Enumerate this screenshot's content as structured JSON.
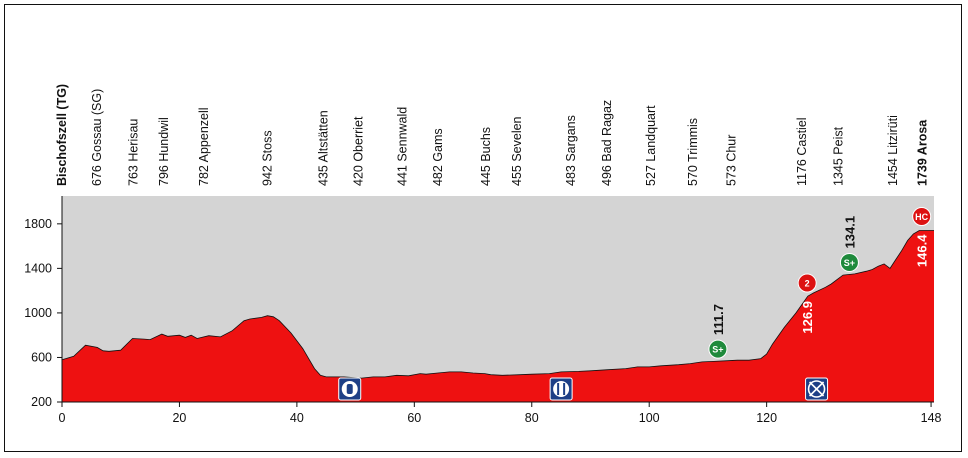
{
  "chart_data": {
    "type": "area",
    "title": "",
    "xlabel": "",
    "ylabel": "",
    "xlim": [
      0,
      148.5
    ],
    "ylim": [
      200,
      2050
    ],
    "x_ticks": [
      0,
      20,
      40,
      60,
      80,
      100,
      120,
      148
    ],
    "y_ticks": [
      200,
      600,
      1000,
      1400,
      1800
    ],
    "grid": false,
    "colors": {
      "fill": "#ee1111",
      "plot_bg": "#d4d4d4",
      "line": "#111111",
      "badge_red": "#dd1111",
      "badge_green": "#1f8a3c",
      "badge_blue": "#1d3f86"
    },
    "profile": [
      [
        0,
        580
      ],
      [
        2,
        610
      ],
      [
        4,
        710
      ],
      [
        6,
        690
      ],
      [
        7,
        660
      ],
      [
        8,
        655
      ],
      [
        10,
        665
      ],
      [
        12,
        770
      ],
      [
        14,
        765
      ],
      [
        15,
        760
      ],
      [
        17,
        810
      ],
      [
        18,
        790
      ],
      [
        20,
        800
      ],
      [
        21,
        780
      ],
      [
        22,
        800
      ],
      [
        23,
        770
      ],
      [
        25,
        795
      ],
      [
        27,
        785
      ],
      [
        29,
        840
      ],
      [
        31,
        930
      ],
      [
        32,
        945
      ],
      [
        34,
        960
      ],
      [
        35,
        975
      ],
      [
        36,
        965
      ],
      [
        37,
        930
      ],
      [
        39,
        820
      ],
      [
        41,
        680
      ],
      [
        43,
        500
      ],
      [
        44,
        440
      ],
      [
        45,
        425
      ],
      [
        48,
        425
      ],
      [
        51,
        415
      ],
      [
        53,
        425
      ],
      [
        55,
        425
      ],
      [
        57,
        440
      ],
      [
        59,
        435
      ],
      [
        61,
        455
      ],
      [
        62,
        450
      ],
      [
        64,
        460
      ],
      [
        66,
        470
      ],
      [
        68,
        470
      ],
      [
        70,
        460
      ],
      [
        72,
        455
      ],
      [
        73,
        445
      ],
      [
        75,
        440
      ],
      [
        78,
        445
      ],
      [
        80,
        450
      ],
      [
        83,
        455
      ],
      [
        85,
        470
      ],
      [
        88,
        475
      ],
      [
        90,
        480
      ],
      [
        93,
        490
      ],
      [
        96,
        500
      ],
      [
        98,
        515
      ],
      [
        100,
        515
      ],
      [
        102,
        525
      ],
      [
        105,
        535
      ],
      [
        107,
        545
      ],
      [
        109,
        560
      ],
      [
        111,
        565
      ],
      [
        113,
        570
      ],
      [
        115,
        575
      ],
      [
        117,
        575
      ],
      [
        119,
        590
      ],
      [
        120,
        630
      ],
      [
        121,
        720
      ],
      [
        123,
        870
      ],
      [
        125,
        1000
      ],
      [
        127,
        1150
      ],
      [
        128,
        1180
      ],
      [
        130,
        1230
      ],
      [
        131,
        1260
      ],
      [
        133,
        1340
      ],
      [
        135,
        1350
      ],
      [
        137,
        1375
      ],
      [
        138,
        1390
      ],
      [
        139,
        1420
      ],
      [
        140,
        1440
      ],
      [
        141,
        1400
      ],
      [
        142,
        1480
      ],
      [
        143,
        1560
      ],
      [
        144,
        1650
      ],
      [
        145,
        1710
      ],
      [
        146,
        1740
      ],
      [
        148.5,
        1740
      ]
    ],
    "locations": [
      {
        "label": "Bischofszell (TG)",
        "km": 0.0,
        "bold": true
      },
      {
        "label": "676 Gossau  (SG)",
        "km": 6.0,
        "bold": false
      },
      {
        "label": "763 Herisau",
        "km": 12.2,
        "bold": false
      },
      {
        "label": "796 Hundwil",
        "km": 17.4,
        "bold": false
      },
      {
        "label": "782 Appenzell",
        "km": 24.2,
        "bold": false
      },
      {
        "label": "942 Stoss",
        "km": 35.0,
        "bold": false
      },
      {
        "label": "435 Altstätten",
        "km": 44.5,
        "bold": false
      },
      {
        "label": "420 Oberriet",
        "km": 50.5,
        "bold": false
      },
      {
        "label": "441 Sennwald",
        "km": 58.0,
        "bold": false
      },
      {
        "label": "482 Gams",
        "km": 64.0,
        "bold": false
      },
      {
        "label": "445 Buchs",
        "km": 72.2,
        "bold": false
      },
      {
        "label": "455 Sevelen",
        "km": 77.5,
        "bold": false
      },
      {
        "label": "483 Sargans",
        "km": 86.7,
        "bold": false
      },
      {
        "label": "496 Bad Ragaz",
        "km": 92.8,
        "bold": false
      },
      {
        "label": "527 Landquart",
        "km": 100.3,
        "bold": false
      },
      {
        "label": "570 Trimmis",
        "km": 107.5,
        "bold": false
      },
      {
        "label": "573 Chur",
        "km": 114.0,
        "bold": false
      },
      {
        "label": "1176 Castiel",
        "km": 126.0,
        "bold": false
      },
      {
        "label": "1345  Peist",
        "km": 132.2,
        "bold": false
      },
      {
        "label": "1454 Litzirüti",
        "km": 141.5,
        "bold": false
      },
      {
        "label": "1739 Arosa",
        "km": 146.5,
        "bold": true
      }
    ],
    "annotations": [
      {
        "text": "111.7",
        "km": 111.7,
        "color": "#111111",
        "badge": "S+",
        "badge_color": "#1f8a3c",
        "inside": false
      },
      {
        "text": "134.1",
        "km": 134.1,
        "color": "#111111",
        "badge": "S+",
        "badge_color": "#1f8a3c",
        "inside": false
      },
      {
        "text": "126.9",
        "km": 126.9,
        "color": "#ffffff",
        "badge": "2",
        "badge_color": "#dd1111",
        "inside": true
      },
      {
        "text": "146.4",
        "km": 146.4,
        "color": "#ffffff",
        "badge": "HC",
        "badge_color": "#dd1111",
        "inside": true
      }
    ],
    "markers": [
      {
        "km": 49.0,
        "icon": "bottle-icon",
        "name": "feed-zone-marker"
      },
      {
        "km": 85.0,
        "icon": "fork-knife-icon",
        "name": "feed-station-marker"
      },
      {
        "km": 128.5,
        "icon": "crossed-circle-icon",
        "name": "no-litter-zone-marker"
      }
    ]
  }
}
